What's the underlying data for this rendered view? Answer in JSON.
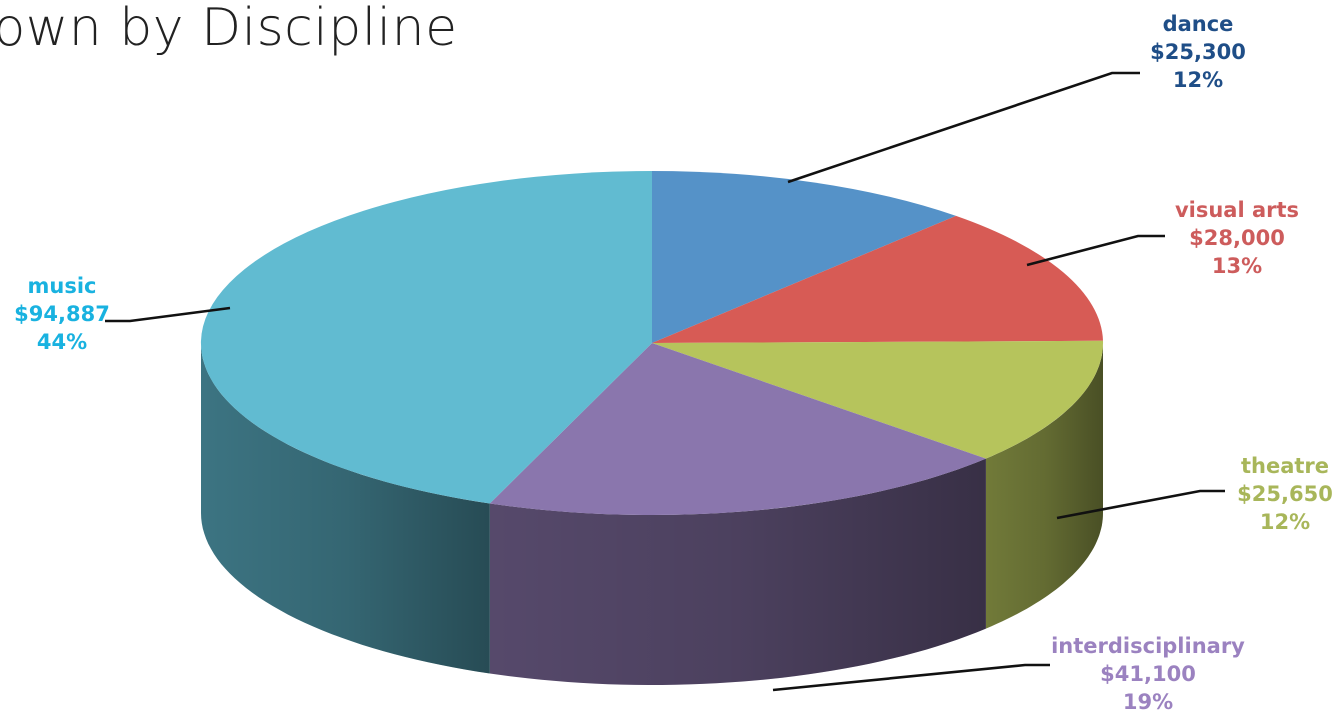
{
  "page": {
    "title": "hown by Discipline"
  },
  "chart_data": {
    "type": "pie",
    "style": "3d",
    "title": "hown by Discipline",
    "series": [
      {
        "name": "dance",
        "value": 25300,
        "value_label": "$25,300",
        "percent_label": "12%",
        "color": "#5592c8",
        "label_color": "#1f4e87"
      },
      {
        "name": "visual arts",
        "value": 28000,
        "value_label": "$28,000",
        "percent_label": "13%",
        "color": "#d75b55",
        "label_color": "#cd5c5c"
      },
      {
        "name": "theatre",
        "value": 25650,
        "value_label": "$25,650",
        "percent_label": "12%",
        "color": "#b6c45c",
        "label_color": "#a8b65a"
      },
      {
        "name": "interdisciplinary",
        "value": 41100,
        "value_label": "$41,100",
        "percent_label": "19%",
        "color": "#8a76ad",
        "label_color": "#9b82c0"
      },
      {
        "name": "music",
        "value": 94887,
        "value_label": "$94,887",
        "percent_label": "44%",
        "color": "#61bbd1",
        "label_color": "#19b2e0"
      }
    ],
    "legend": "none",
    "labels": "outside with leader lines"
  }
}
